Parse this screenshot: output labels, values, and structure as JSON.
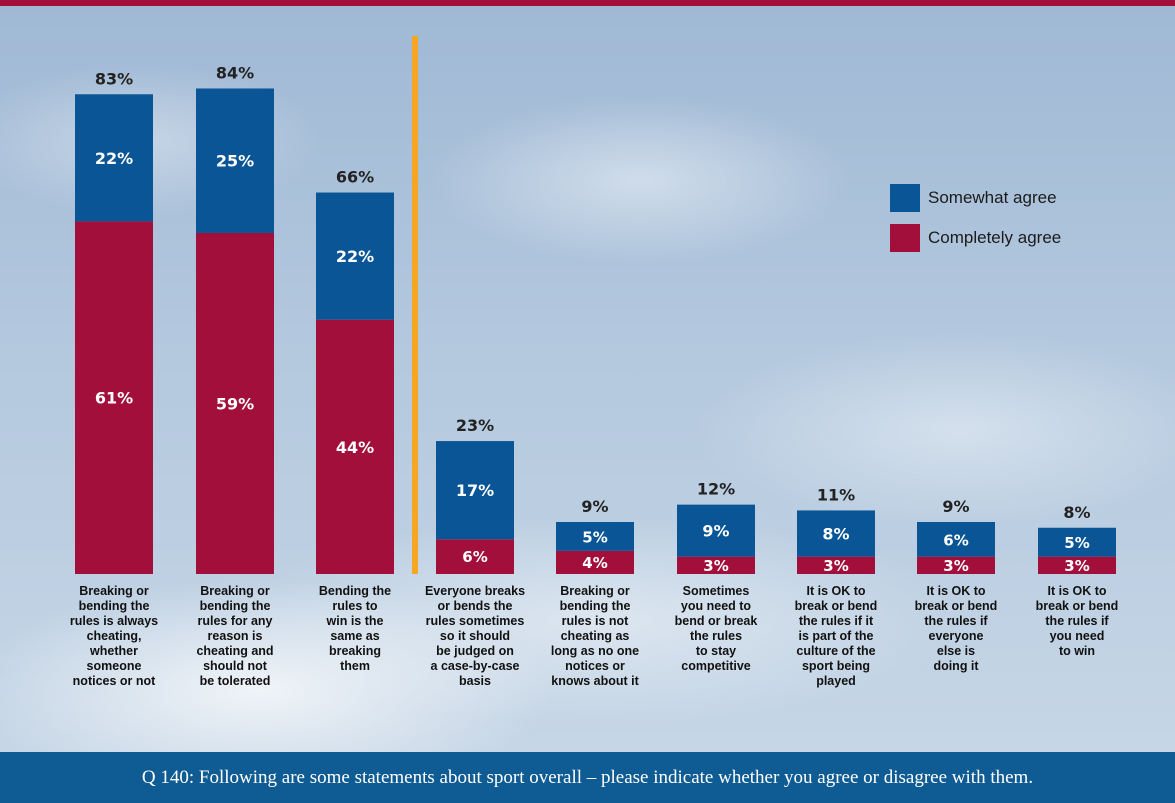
{
  "colors": {
    "somewhat": "#0a5596",
    "completely": "#a20f3b",
    "divider": "#f5a623",
    "footer_bg": "#0f5b93"
  },
  "legend": {
    "somewhat": "Somewhat agree",
    "completely": "Completely agree"
  },
  "footer": {
    "text": "Q 140: Following are some statements about sport overall – please indicate whether you agree or disagree with them."
  },
  "chart_data": {
    "type": "bar",
    "stacked": true,
    "categories": [
      "Breaking or bending the rules is always cheating, whether someone notices or not",
      "Breaking or bending the rules for any reason is cheating and should not be tolerated",
      "Bending the rules to win is the same as breaking them",
      "Everyone breaks or bends the rules sometimes so it should be judged on a case-by-case basis",
      "Breaking or bending the rules is not cheating as long as no one notices or knows about it",
      "Sometimes you need to bend or break the rules to stay competitive",
      "It is OK to break or bend the rules if it is part of the culture of the sport being played",
      "It is OK to break or bend the rules if everyone else is doing it",
      "It is OK to break or bend the rules if you need to win"
    ],
    "category_lines": [
      [
        "Breaking or",
        "bending the",
        "rules is always",
        "cheating,",
        "whether",
        "someone",
        "notices or not"
      ],
      [
        "Breaking or",
        "bending the",
        "rules for any",
        "reason is",
        "cheating and",
        "should not",
        "be tolerated"
      ],
      [
        "Bending the",
        "rules to",
        "win is the",
        "same as",
        "breaking",
        "them"
      ],
      [
        "Everyone breaks",
        "or bends the",
        "rules sometimes",
        "so it should",
        "be judged on",
        "a case-by-case",
        "basis"
      ],
      [
        "Breaking or",
        "bending the",
        "rules is not",
        "cheating as",
        "long as no one",
        "notices or",
        "knows about it"
      ],
      [
        "Sometimes",
        "you need to",
        "bend or break",
        "the rules",
        "to stay",
        "competitive"
      ],
      [
        "It is OK to",
        "break or bend",
        "the rules if it",
        "is part of the",
        "culture of the",
        "sport being",
        "played"
      ],
      [
        "It is OK to",
        "break or bend",
        "the rules if",
        "everyone",
        "else is",
        "doing it"
      ],
      [
        "It is OK to",
        "break or bend",
        "the rules if",
        "you need",
        "to win"
      ]
    ],
    "series": [
      {
        "name": "Completely agree",
        "values": [
          61,
          59,
          44,
          6,
          4,
          3,
          3,
          3,
          3
        ],
        "labels": [
          "61%",
          "59%",
          "44%",
          "6%",
          "4%",
          "3%",
          "3%",
          "3%",
          "3%"
        ]
      },
      {
        "name": "Somewhat agree",
        "values": [
          22,
          25,
          22,
          17,
          5,
          9,
          8,
          6,
          5
        ],
        "labels": [
          "22%",
          "25%",
          "22%",
          "17%",
          "5%",
          "9%",
          "8%",
          "6%",
          "5%"
        ]
      }
    ],
    "totals": [
      83,
      84,
      66,
      23,
      9,
      12,
      11,
      9,
      8
    ],
    "total_labels": [
      "83%",
      "84%",
      "66%",
      "23%",
      "9%",
      "12%",
      "11%",
      "9%",
      "8%"
    ],
    "divider_after_index": 2,
    "ylim": [
      0,
      100
    ],
    "legend_position": "right",
    "grid": false
  }
}
